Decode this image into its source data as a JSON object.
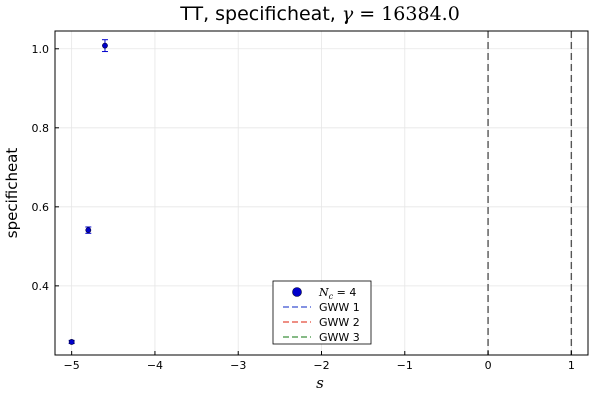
{
  "chart_data": {
    "type": "scatter",
    "title": {
      "prefix": "TT, specificheat, ",
      "math_var": "γ",
      "math_rest": " = 16384.0"
    },
    "xlabel": "s",
    "ylabel": "specificheat",
    "xlim": [
      -5.2,
      1.2
    ],
    "ylim": [
      0.225,
      1.045
    ],
    "xticks": [
      -5,
      -4,
      -3,
      -2,
      -1,
      0,
      1
    ],
    "xtick_labels": [
      "−5",
      "−4",
      "−3",
      "−2",
      "−1",
      "0",
      "1"
    ],
    "yticks": [
      0.4,
      0.6,
      0.8,
      1.0
    ],
    "ytick_labels": [
      "0.4",
      "0.6",
      "0.8",
      "1.0"
    ],
    "grid": true,
    "legend_position": "bottom-center",
    "series": [
      {
        "name": "N_c = 4",
        "name_math_var": "N",
        "name_math_sub": "c",
        "name_rest": " = 4",
        "kind": "scatter",
        "color": "#0000cc",
        "points": [
          {
            "x": -5.0,
            "y": 0.258,
            "err": 0.004
          },
          {
            "x": -4.8,
            "y": 0.541,
            "err": 0.008
          },
          {
            "x": -4.6,
            "y": 1.008,
            "err": 0.015
          }
        ]
      },
      {
        "name": "GWW 1",
        "kind": "line",
        "color": "#5b6fd8",
        "dash": "dashed",
        "points": []
      },
      {
        "name": "GWW 2",
        "kind": "line",
        "color": "#e86a5c",
        "dash": "dashed",
        "points": []
      },
      {
        "name": "GWW 3",
        "kind": "line",
        "color": "#5fa35f",
        "dash": "dashed",
        "points": []
      }
    ],
    "vlines": [
      {
        "x": 0,
        "color": "#555555",
        "dash": "dashed"
      },
      {
        "x": 1,
        "color": "#555555",
        "dash": "dashed"
      }
    ]
  }
}
